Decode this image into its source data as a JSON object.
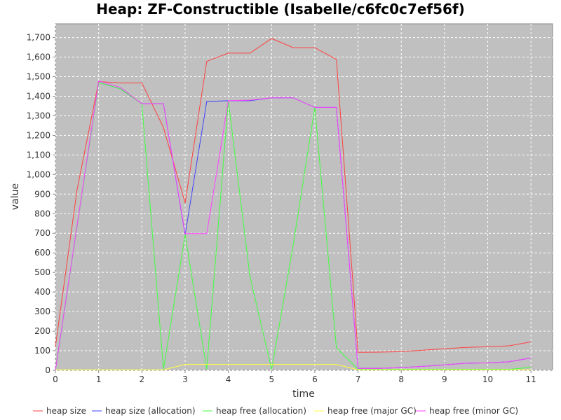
{
  "chart_data": {
    "type": "line",
    "title": "Heap: ZF-Constructible (Isabelle/c6fc0c7ef56f)",
    "xlabel": "time",
    "ylabel": "value",
    "xlim": [
      0,
      11.5
    ],
    "ylim": [
      0,
      1770
    ],
    "x_ticks": [
      0,
      1,
      2,
      3,
      4,
      5,
      6,
      7,
      8,
      9,
      10,
      11
    ],
    "x_tick_labels": [
      "0",
      "1",
      "2",
      "3",
      "4",
      "5",
      "6",
      "7",
      "8",
      "9",
      "10",
      "11"
    ],
    "y_ticks": [
      0,
      100,
      200,
      300,
      400,
      500,
      600,
      700,
      800,
      900,
      1000,
      1100,
      1200,
      1300,
      1400,
      1500,
      1600,
      1700
    ],
    "y_tick_labels": [
      "0",
      "100",
      "200",
      "300",
      "400",
      "500",
      "600",
      "700",
      "800",
      "900",
      "1,000",
      "1,100",
      "1,200",
      "1,300",
      "1,400",
      "1,500",
      "1,600",
      "1,700"
    ],
    "grid": true,
    "plot_background": "#c0c0c0",
    "legend_position": "bottom",
    "series": [
      {
        "name": "heap size",
        "color": "#ff4040",
        "points": [
          [
            0,
            120
          ],
          [
            0.5,
            920
          ],
          [
            1,
            1475
          ],
          [
            1.5,
            1468
          ],
          [
            2,
            1468
          ],
          [
            2.5,
            1240
          ],
          [
            3,
            855
          ],
          [
            3.5,
            1578
          ],
          [
            4,
            1620
          ],
          [
            4.5,
            1620
          ],
          [
            5,
            1695
          ],
          [
            5.5,
            1648
          ],
          [
            6,
            1648
          ],
          [
            6.5,
            1588
          ],
          [
            7,
            92
          ],
          [
            7.5,
            93
          ],
          [
            8,
            95
          ],
          [
            8.5,
            103
          ],
          [
            9,
            110
          ],
          [
            9.5,
            117
          ],
          [
            10,
            120
          ],
          [
            10.5,
            125
          ],
          [
            11,
            145
          ]
        ]
      },
      {
        "name": "heap size (allocation)",
        "color": "#4040ff",
        "points": [
          [
            0,
            0
          ],
          [
            1,
            1470
          ],
          [
            1.5,
            1438
          ],
          [
            2,
            1362
          ],
          [
            2.5,
            1362
          ],
          [
            3,
            693
          ],
          [
            3.5,
            1373
          ],
          [
            4,
            1377
          ],
          [
            4.5,
            1377
          ],
          [
            5,
            1392
          ],
          [
            5.5,
            1392
          ],
          [
            6,
            1343
          ],
          [
            6.5,
            1343
          ],
          [
            7,
            10
          ],
          [
            7.5,
            10
          ],
          [
            8,
            14
          ],
          [
            8.5,
            20
          ],
          [
            9,
            28
          ],
          [
            9.5,
            36
          ],
          [
            10,
            38
          ],
          [
            10.5,
            44
          ],
          [
            11,
            63
          ]
        ]
      },
      {
        "name": "heap free (allocation)",
        "color": "#40ff40",
        "points": [
          [
            0,
            0
          ],
          [
            1,
            1470
          ],
          [
            1.5,
            1438
          ],
          [
            2,
            1362
          ],
          [
            2.5,
            5
          ],
          [
            3,
            693
          ],
          [
            3.5,
            5
          ],
          [
            4,
            1377
          ],
          [
            4.5,
            480
          ],
          [
            5,
            5
          ],
          [
            5.5,
            640
          ],
          [
            6,
            1343
          ],
          [
            6.5,
            115
          ],
          [
            7,
            5
          ],
          [
            7.5,
            5
          ],
          [
            8,
            5
          ],
          [
            9,
            5
          ],
          [
            10,
            5
          ],
          [
            10.5,
            5
          ],
          [
            11,
            15
          ]
        ]
      },
      {
        "name": "heap free (major GC)",
        "color": "#ffff40",
        "points": [
          [
            0,
            3
          ],
          [
            1,
            3
          ],
          [
            2,
            3
          ],
          [
            2.5,
            3
          ],
          [
            3,
            30
          ],
          [
            3.5,
            30
          ],
          [
            4,
            30
          ],
          [
            5,
            30
          ],
          [
            6,
            30
          ],
          [
            6.5,
            30
          ],
          [
            7,
            3
          ],
          [
            8,
            3
          ],
          [
            9,
            3
          ],
          [
            10,
            3
          ],
          [
            11,
            3
          ]
        ]
      },
      {
        "name": "heap free (minor GC)",
        "color": "#ff40ff",
        "points": [
          [
            0,
            0
          ],
          [
            1,
            1478
          ],
          [
            1.5,
            1445
          ],
          [
            2,
            1362
          ],
          [
            2.5,
            1362
          ],
          [
            3,
            698
          ],
          [
            3.5,
            698
          ],
          [
            4,
            1377
          ],
          [
            4.5,
            1380
          ],
          [
            5,
            1392
          ],
          [
            5.5,
            1392
          ],
          [
            6,
            1343
          ],
          [
            6.5,
            1343
          ],
          [
            7,
            10
          ],
          [
            7.5,
            10
          ],
          [
            8,
            14
          ],
          [
            8.5,
            20
          ],
          [
            9,
            28
          ],
          [
            9.5,
            36
          ],
          [
            10,
            38
          ],
          [
            10.5,
            44
          ],
          [
            11,
            63
          ]
        ]
      }
    ]
  }
}
